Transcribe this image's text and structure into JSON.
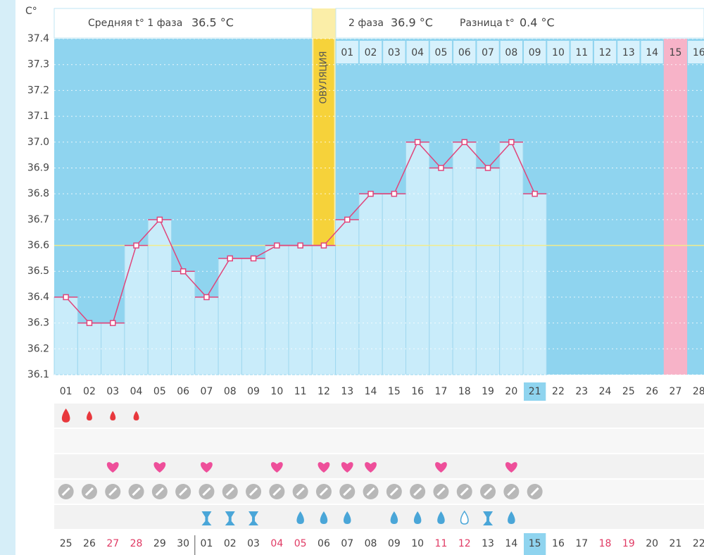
{
  "chart_data": {
    "type": "bbt",
    "y_label": "C°",
    "header": {
      "phase1_label": "Средняя t° 1 фаза",
      "phase1_value": "36.5 °C",
      "phase2_label": "2 фаза",
      "phase2_value": "36.9 °C",
      "diff_label": "Разница t°",
      "diff_value": "0.4 °C"
    },
    "ovulation_label": "ОВУЛЯЦИЯ",
    "ovulation_index": 11,
    "ylim": [
      36.1,
      37.4
    ],
    "yticks": [
      36.1,
      36.2,
      36.3,
      36.4,
      36.5,
      36.6,
      36.7,
      36.8,
      36.9,
      {
        "value": 37,
        "label": "37.0"
      },
      37.1,
      37.2,
      37.3,
      37.4
    ],
    "grid": true,
    "coverline": 36.6,
    "categories": [
      "01",
      "02",
      "03",
      "04",
      "05",
      "06",
      "07",
      "08",
      "09",
      "10",
      "11",
      "12",
      "13",
      "14",
      "15",
      "16",
      "17",
      "18",
      "19",
      "20",
      "21",
      "22",
      "23",
      "24",
      "25",
      "26",
      "27",
      "28"
    ],
    "values": [
      36.4,
      36.3,
      36.3,
      36.6,
      36.7,
      36.5,
      36.4,
      36.55,
      36.55,
      36.6,
      36.6,
      36.6,
      36.7,
      36.8,
      36.8,
      37.0,
      36.9,
      37.0,
      36.9,
      37.0,
      36.8,
      null,
      null,
      null,
      null,
      null,
      null,
      null
    ],
    "color": "#e0457b",
    "phase2_start": 12,
    "phase2_days": [
      "01",
      "02",
      "03",
      "04",
      "05",
      "06",
      "07",
      "08",
      "09",
      "10",
      "11",
      "12",
      "13",
      "14",
      "15",
      "16"
    ],
    "highlight_phase2_index": 14,
    "today_index": 20,
    "dates": [
      "25",
      "26",
      "27",
      "28",
      "29",
      "30",
      "01",
      "02",
      "03",
      "04",
      "05",
      "06",
      "07",
      "08",
      "09",
      "10",
      "11",
      "12",
      "13",
      "14",
      "15",
      "16",
      "17",
      "18",
      "19",
      "20",
      "21",
      "22"
    ],
    "weekend": [
      false,
      false,
      true,
      true,
      false,
      false,
      false,
      false,
      false,
      true,
      true,
      false,
      false,
      false,
      false,
      false,
      true,
      true,
      false,
      false,
      false,
      false,
      false,
      true,
      true,
      false,
      false,
      false
    ],
    "bleeding": [
      "large",
      "small",
      "small",
      "small",
      null,
      null,
      null,
      null,
      null,
      null,
      null,
      null,
      null,
      null,
      null,
      null,
      null,
      null,
      null,
      null,
      null,
      null,
      null,
      null,
      null,
      null,
      null,
      null
    ],
    "intercourse": [
      false,
      false,
      true,
      false,
      true,
      false,
      true,
      false,
      false,
      true,
      false,
      true,
      true,
      true,
      false,
      false,
      true,
      false,
      false,
      true,
      false,
      false,
      false,
      false,
      false,
      false,
      false,
      false
    ],
    "test": [
      true,
      true,
      true,
      true,
      true,
      true,
      true,
      true,
      true,
      true,
      true,
      true,
      true,
      true,
      true,
      true,
      true,
      true,
      true,
      true,
      true,
      false,
      false,
      false,
      false,
      false,
      false,
      false
    ],
    "discharge": [
      null,
      null,
      null,
      null,
      null,
      null,
      "hourglass",
      "hourglass",
      "hourglass",
      null,
      "drop",
      "drop",
      "drop",
      null,
      "drop",
      "drop",
      "drop",
      "open",
      "hourglass",
      "drop",
      null,
      null,
      null,
      null,
      null,
      null,
      null,
      null
    ]
  }
}
